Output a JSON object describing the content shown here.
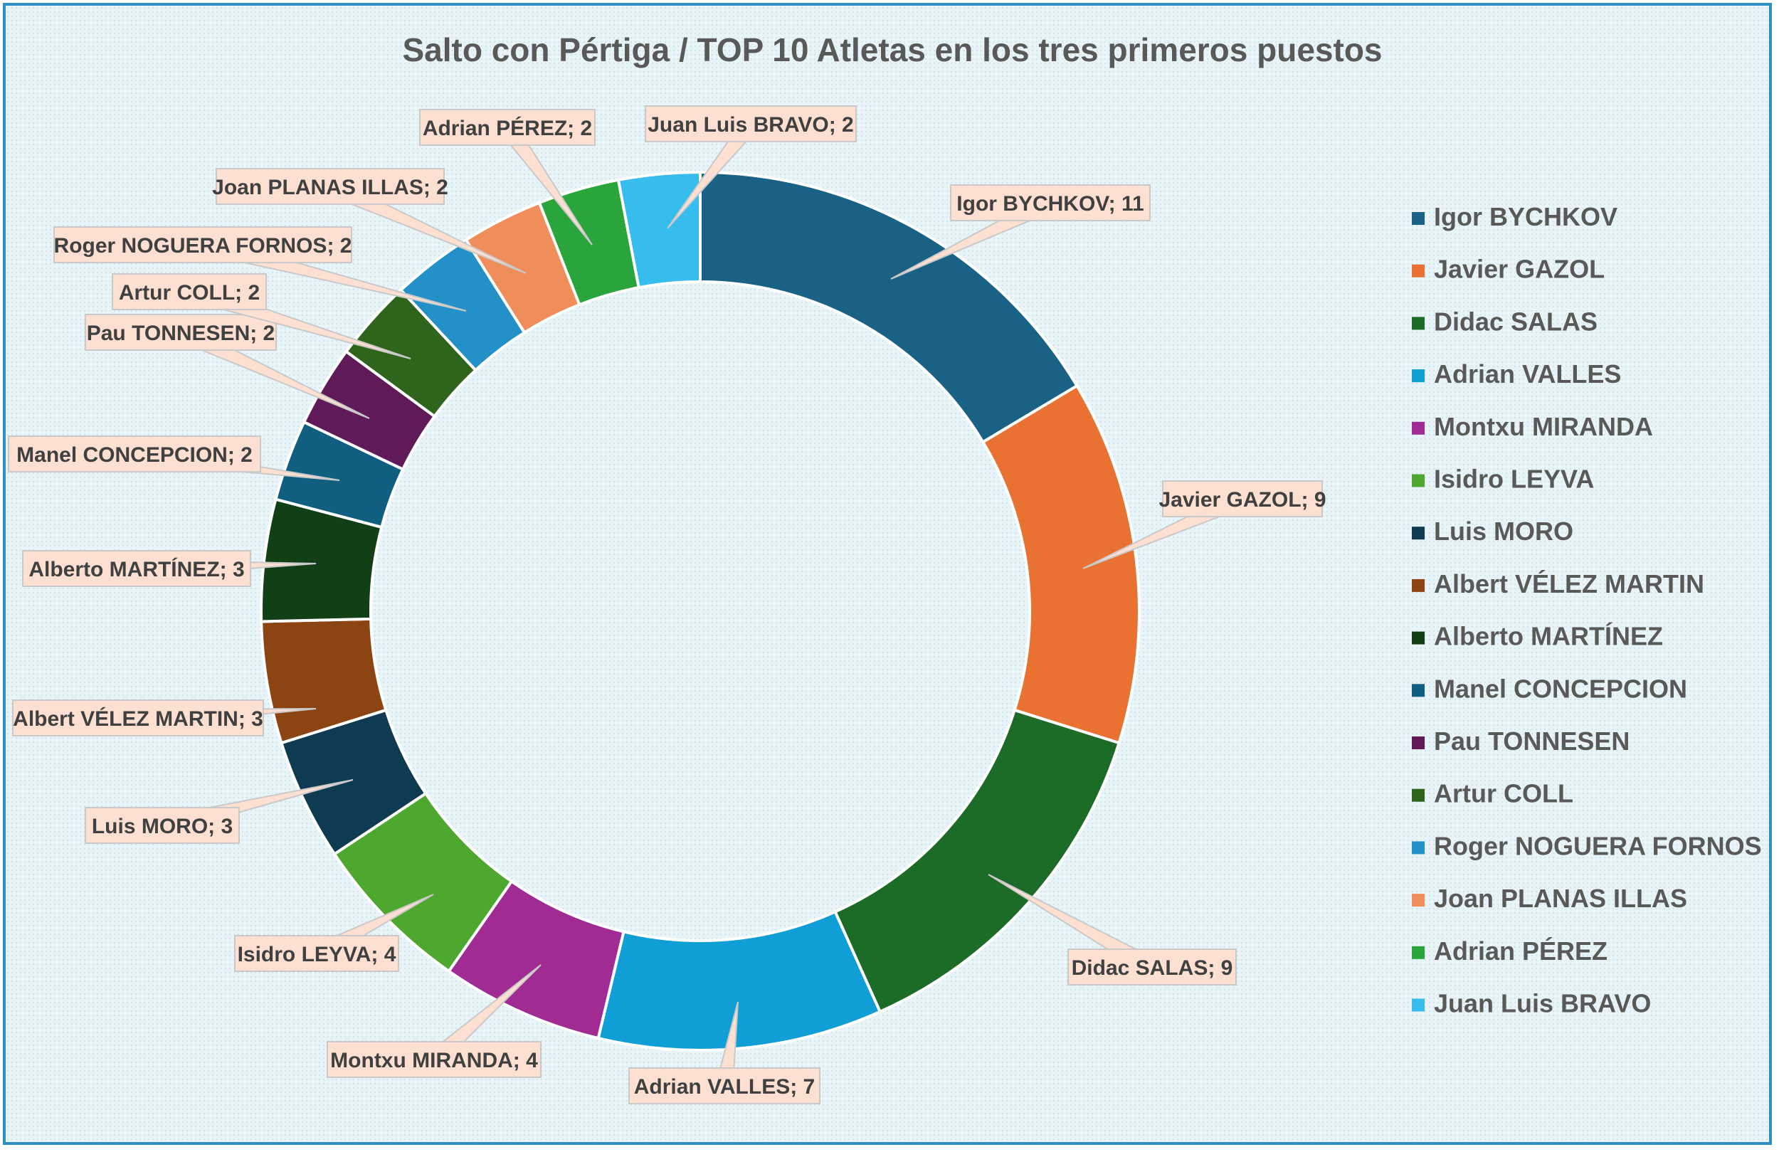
{
  "chart_data": {
    "type": "pie",
    "variant": "doughnut",
    "title": "Salto con Pértiga / TOP 10 Atletas en los tres primeros puestos",
    "legend_position": "right",
    "series": [
      {
        "name": "Igor BYCHKOV",
        "value": 11,
        "label": "Igor BYCHKOV; 11",
        "color": "#1a6186"
      },
      {
        "name": "Javier GAZOL",
        "value": 9,
        "label": "Javier GAZOL; 9",
        "color": "#e97232"
      },
      {
        "name": "Didac SALAS",
        "value": 9,
        "label": "Didac SALAS; 9",
        "color": "#1c6b26"
      },
      {
        "name": "Adrian VALLES",
        "value": 7,
        "label": "Adrian VALLES; 7",
        "color": "#0f9ed5"
      },
      {
        "name": "Montxu MIRANDA",
        "value": 4,
        "label": "Montxu MIRANDA; 4",
        "color": "#a02b93"
      },
      {
        "name": "Isidro LEYVA",
        "value": 4,
        "label": "Isidro LEYVA; 4",
        "color": "#4ea72e"
      },
      {
        "name": "Luis MORO",
        "value": 3,
        "label": "Luis MORO; 3",
        "color": "#0e3a52"
      },
      {
        "name": "Albert VÉLEZ MARTIN",
        "value": 3,
        "label": "Albert VÉLEZ MARTIN; 3",
        "color": "#8c4413"
      },
      {
        "name": "Alberto MARTÍNEZ",
        "value": 3,
        "label": "Alberto MARTÍNEZ; 3",
        "color": "#113f16"
      },
      {
        "name": "Manel CONCEPCION",
        "value": 2,
        "label": "Manel CONCEPCION; 2",
        "color": "#105f80"
      },
      {
        "name": "Pau TONNESEN",
        "value": 2,
        "label": "Pau TONNESEN; 2",
        "color": "#601a58"
      },
      {
        "name": "Artur COLL",
        "value": 2,
        "label": "Artur COLL; 2",
        "color": "#2f641c"
      },
      {
        "name": "Roger NOGUERA FORNOS",
        "value": 2,
        "label": "Roger NOGUERA FORNOS; 2",
        "color": "#2390c8"
      },
      {
        "name": "Joan PLANAS ILLAS",
        "value": 2,
        "label": "Joan PLANAS ILLAS; 2",
        "color": "#ef8e5b"
      },
      {
        "name": "Adrian PÉREZ",
        "value": 2,
        "label": "Adrian PÉREZ; 2",
        "color": "#2aa53c"
      },
      {
        "name": "Juan Luis BRAVO",
        "value": 2,
        "label": "Juan Luis BRAVO; 2",
        "color": "#37bcee"
      }
    ]
  }
}
